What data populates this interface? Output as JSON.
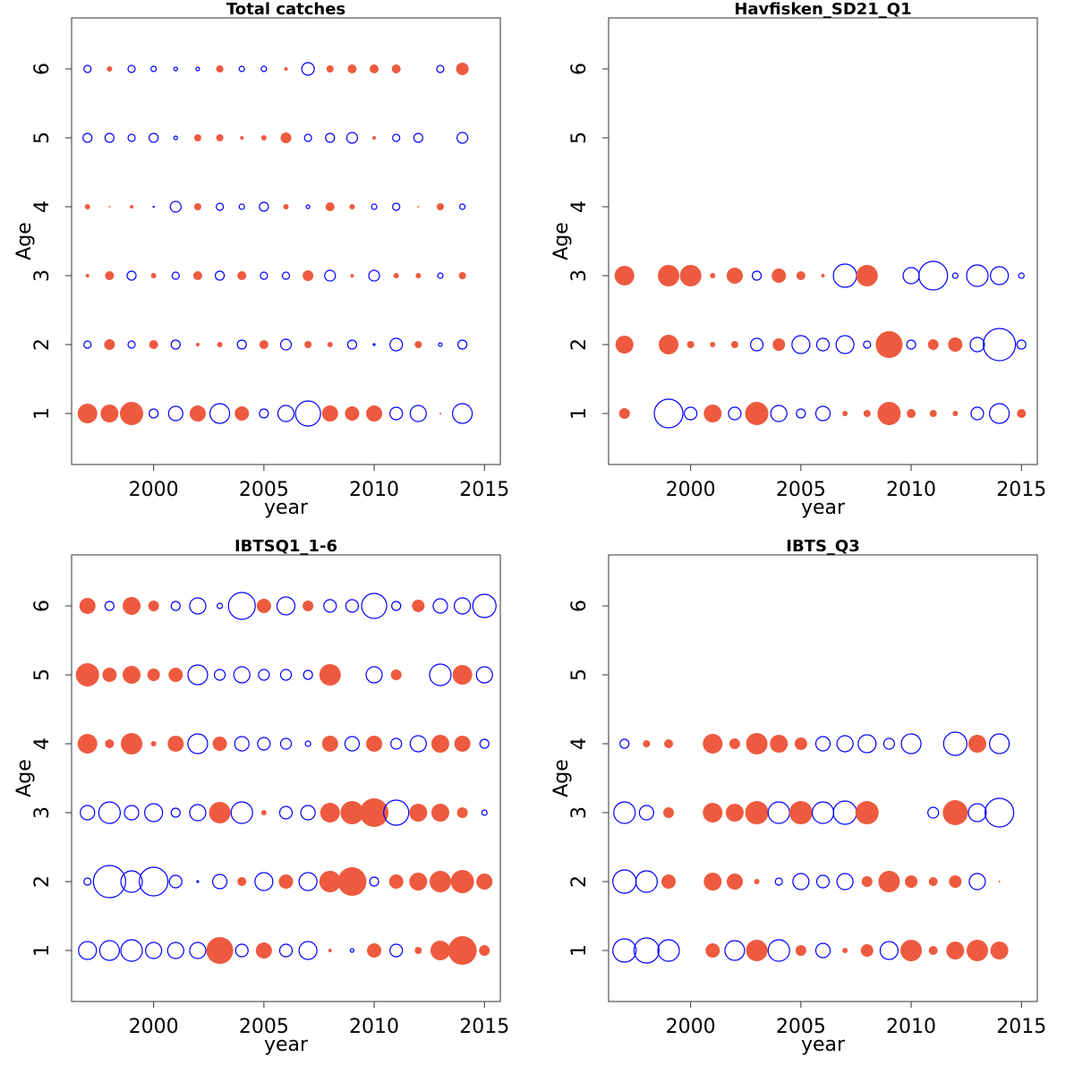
{
  "chart_data": [
    {
      "type": "bubble",
      "title": "Total catches",
      "xlabel": "year",
      "ylabel": "Age",
      "xlim": [
        1996.28,
        2015.72
      ],
      "xticks": [
        2000,
        2005,
        2010,
        2015
      ],
      "ylim": [
        0.26,
        6.74
      ],
      "yticks": [
        1,
        2,
        3,
        4,
        5,
        6
      ],
      "positive_color": "#ee5a3f",
      "negative_color": "#0000ff",
      "x": [
        1997,
        1998,
        1999,
        2000,
        2001,
        2002,
        2003,
        2004,
        2005,
        2006,
        2007,
        2008,
        2009,
        2010,
        2011,
        2012,
        2013,
        2014
      ],
      "y": [
        1,
        2,
        3,
        4,
        5,
        6
      ],
      "values": [
        [
          1.1,
          1.0,
          1.3,
          -0.5,
          -0.8,
          0.9,
          -1.1,
          0.8,
          -0.5,
          -0.9,
          -1.4,
          0.9,
          0.8,
          0.9,
          -0.7,
          -0.9,
          0.1,
          -1.1
        ],
        [
          -0.4,
          0.6,
          -0.4,
          0.5,
          -0.5,
          0.2,
          0.3,
          -0.5,
          0.5,
          -0.6,
          0.4,
          0.3,
          -0.5,
          -0.1,
          -0.7,
          0.4,
          -0.2,
          -0.5
        ],
        [
          0.2,
          0.5,
          -0.5,
          0.3,
          -0.4,
          0.5,
          -0.5,
          0.5,
          -0.4,
          -0.4,
          0.6,
          -0.6,
          0.2,
          -0.6,
          0.3,
          0.3,
          -0.3,
          0.4
        ],
        [
          0.3,
          0.1,
          0.2,
          -0.05,
          -0.6,
          0.4,
          -0.4,
          -0.3,
          -0.5,
          0.3,
          -0.2,
          0.5,
          0.3,
          -0.3,
          -0.4,
          0.1,
          0.4,
          -0.3
        ],
        [
          -0.5,
          -0.5,
          -0.4,
          -0.5,
          -0.2,
          0.4,
          0.4,
          0.2,
          0.3,
          0.6,
          -0.4,
          -0.5,
          -0.6,
          0.2,
          -0.4,
          -0.5,
          null,
          -0.6
        ],
        [
          -0.4,
          0.3,
          -0.4,
          -0.3,
          -0.2,
          -0.2,
          0.4,
          -0.3,
          -0.3,
          0.2,
          -0.7,
          0.4,
          0.5,
          0.5,
          0.5,
          null,
          -0.4,
          0.7
        ]
      ]
    },
    {
      "type": "bubble",
      "title": "Havfisken_SD21_Q1",
      "xlabel": "year",
      "ylabel": "Age",
      "xlim": [
        1996.28,
        2015.72
      ],
      "xticks": [
        2000,
        2005,
        2010,
        2015
      ],
      "ylim": [
        0.26,
        6.74
      ],
      "yticks": [
        1,
        2,
        3,
        4,
        5,
        6
      ],
      "positive_color": "#ee5a3f",
      "negative_color": "#0000ff",
      "x": [
        1997,
        1998,
        1999,
        2000,
        2001,
        2002,
        2003,
        2004,
        2005,
        2006,
        2007,
        2008,
        2009,
        2010,
        2011,
        2012,
        2013,
        2014,
        2015
      ],
      "y": [
        1,
        2,
        3
      ],
      "values": [
        [
          0.6,
          null,
          -1.6,
          -0.7,
          1.0,
          -0.7,
          1.3,
          -0.9,
          -0.5,
          -0.8,
          0.3,
          0.4,
          1.3,
          0.5,
          0.4,
          0.3,
          -0.7,
          -1.1,
          0.5
        ],
        [
          1.0,
          null,
          1.1,
          0.4,
          0.3,
          0.4,
          -0.7,
          0.7,
          -1.0,
          -0.7,
          -1.0,
          -0.4,
          1.5,
          -0.5,
          0.6,
          0.8,
          -0.8,
          -1.8,
          -0.5
        ],
        [
          1.1,
          null,
          1.2,
          1.2,
          0.3,
          0.9,
          -0.5,
          0.8,
          0.5,
          0.2,
          -1.3,
          1.2,
          null,
          -0.9,
          -1.6,
          -0.3,
          -1.2,
          -1.0,
          -0.3
        ]
      ]
    },
    {
      "type": "bubble",
      "title": "IBTSQ1_1-6",
      "xlabel": "year",
      "ylabel": "Age",
      "xlim": [
        1996.28,
        2015.72
      ],
      "xticks": [
        2000,
        2005,
        2010,
        2015
      ],
      "ylim": [
        0.26,
        6.74
      ],
      "yticks": [
        1,
        2,
        3,
        4,
        5,
        6
      ],
      "positive_color": "#ee5a3f",
      "negative_color": "#0000ff",
      "x": [
        1997,
        1998,
        1999,
        2000,
        2001,
        2002,
        2003,
        2004,
        2005,
        2006,
        2007,
        2008,
        2009,
        2010,
        2011,
        2012,
        2013,
        2014,
        2015
      ],
      "y": [
        1,
        2,
        3,
        4,
        5,
        6
      ],
      "values": [
        [
          -1.0,
          -1.1,
          -1.2,
          -0.9,
          -0.9,
          -0.9,
          1.5,
          -0.7,
          0.9,
          -0.7,
          -1.0,
          0.2,
          -0.2,
          0.8,
          -0.7,
          0.4,
          1.1,
          1.6,
          0.6
        ],
        [
          -0.4,
          -1.8,
          -1.2,
          -1.6,
          -0.7,
          -0.1,
          -0.8,
          0.5,
          -1.0,
          0.8,
          -1.0,
          1.2,
          1.6,
          -0.5,
          0.8,
          1.0,
          1.2,
          1.3,
          0.9
        ],
        [
          -0.8,
          -1.2,
          -0.8,
          -1.0,
          -0.5,
          -0.9,
          1.2,
          -1.2,
          0.3,
          -0.7,
          -0.8,
          1.1,
          1.3,
          1.6,
          -1.4,
          1.0,
          1.0,
          0.6,
          -0.3
        ],
        [
          1.1,
          0.5,
          1.2,
          0.3,
          0.9,
          -1.1,
          0.8,
          -0.8,
          -0.7,
          -0.6,
          -0.3,
          0.9,
          -0.8,
          0.9,
          -0.6,
          -0.9,
          1.0,
          0.9,
          -0.5
        ],
        [
          1.3,
          0.8,
          1.0,
          0.7,
          0.8,
          -1.1,
          -0.6,
          -0.9,
          -0.6,
          -0.6,
          -0.5,
          1.2,
          null,
          -0.9,
          0.6,
          null,
          -1.2,
          1.1,
          -0.9
        ],
        [
          0.9,
          -0.5,
          1.0,
          0.6,
          -0.5,
          -0.9,
          -0.3,
          -1.5,
          0.8,
          -1.0,
          0.6,
          -0.7,
          -0.7,
          -1.4,
          -0.5,
          0.7,
          -0.8,
          -0.9,
          -1.3
        ]
      ]
    },
    {
      "type": "bubble",
      "title": "IBTS_Q3",
      "xlabel": "year",
      "ylabel": "Age",
      "xlim": [
        1996.28,
        2015.72
      ],
      "xticks": [
        2000,
        2005,
        2010,
        2015
      ],
      "ylim": [
        0.26,
        6.74
      ],
      "yticks": [
        1,
        2,
        3,
        4,
        5,
        6
      ],
      "positive_color": "#ee5a3f",
      "negative_color": "#0000ff",
      "x": [
        1997,
        1998,
        1999,
        2000,
        2001,
        2002,
        2003,
        2004,
        2005,
        2006,
        2007,
        2008,
        2009,
        2010,
        2011,
        2012,
        2013,
        2014
      ],
      "y": [
        1,
        2,
        3,
        4
      ],
      "values": [
        [
          -1.3,
          -1.4,
          -1.2,
          null,
          0.8,
          -1.1,
          1.2,
          -1.2,
          0.6,
          -0.8,
          0.3,
          0.7,
          -1.0,
          1.2,
          0.5,
          1.0,
          1.2,
          1.0
        ],
        [
          -1.3,
          -1.2,
          0.8,
          null,
          1.0,
          0.9,
          0.3,
          -0.4,
          -0.9,
          -0.7,
          -0.9,
          0.6,
          1.2,
          0.7,
          0.5,
          0.7,
          -0.9,
          0.1
        ],
        [
          -1.2,
          -0.8,
          0.6,
          null,
          1.1,
          1.0,
          1.3,
          -1.2,
          1.3,
          -1.2,
          -1.3,
          1.3,
          null,
          null,
          -0.6,
          1.4,
          -1.0,
          -1.6
        ],
        [
          -0.5,
          0.4,
          0.5,
          null,
          1.1,
          0.6,
          1.2,
          1.0,
          0.7,
          -0.8,
          -0.9,
          -1.0,
          -0.6,
          -1.1,
          null,
          -1.3,
          1.0,
          -1.1
        ]
      ]
    }
  ]
}
